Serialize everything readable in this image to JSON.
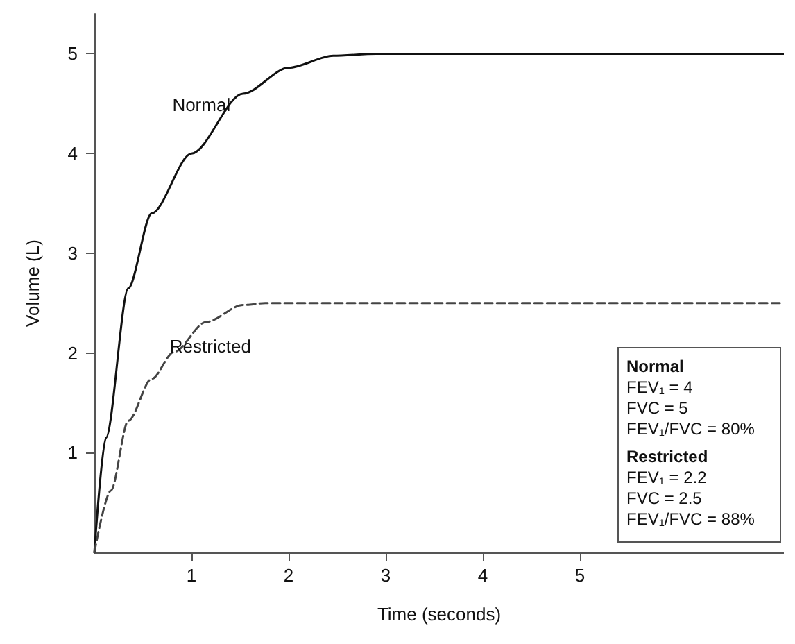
{
  "chart_data": {
    "type": "line",
    "xlabel": "Time (seconds)",
    "ylabel": "Volume (L)",
    "xlim": [
      0,
      7.1
    ],
    "ylim": [
      0,
      5.4
    ],
    "xticks": [
      1,
      2,
      3,
      4,
      5
    ],
    "yticks": [
      1,
      2,
      3,
      4,
      5
    ],
    "grid": false,
    "legend": false,
    "marker": "none",
    "series": [
      {
        "name": "Normal",
        "color": "#111111",
        "line_style": "solid",
        "x": [
          0,
          0.12,
          0.35,
          0.59,
          1.0,
          1.53,
          2.0,
          2.46,
          2.9,
          7.1
        ],
        "values": [
          0,
          1.15,
          2.65,
          3.4,
          4.0,
          4.6,
          4.86,
          4.98,
          5,
          5
        ]
      },
      {
        "name": "Restricted",
        "color": "#444444",
        "line_style": "dashed",
        "x": [
          0,
          0.17,
          0.35,
          0.59,
          0.82,
          1.15,
          1.53,
          1.76,
          7.1
        ],
        "values": [
          0,
          0.62,
          1.32,
          1.74,
          2.01,
          2.31,
          2.48,
          2.5,
          2.5
        ]
      }
    ],
    "annotations": [
      "Normal\nFEV₁ = 4\nFVC = 5\nFEV₁/FVC = 80%",
      "Restricted\nFEV₁ = 2.2\nFVC = 2.5\nFEV₁/FVC = 88%"
    ]
  }
}
